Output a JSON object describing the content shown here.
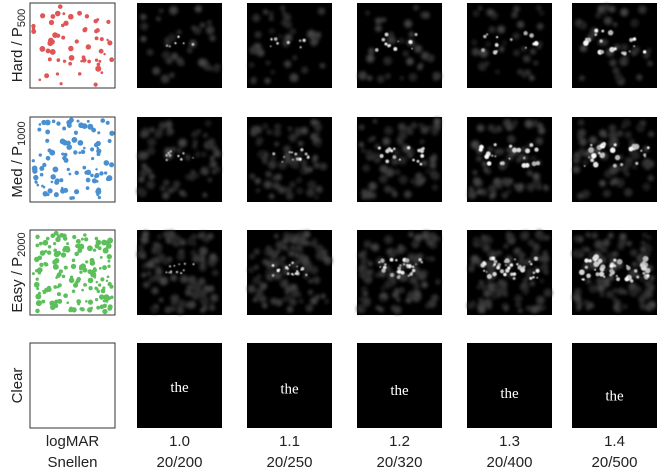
{
  "rows": [
    {
      "label": "Hard / P",
      "sub": "500"
    },
    {
      "label": "Med / P",
      "sub": "1000"
    },
    {
      "label": "Easy / P",
      "sub": "2000"
    },
    {
      "label": "Clear"
    }
  ],
  "clear_word": "the",
  "footer": {
    "logmar_label": "logMAR",
    "snellen_label": "Snellen"
  },
  "columns": [
    {
      "logmar": "1.0",
      "snellen": "20/200"
    },
    {
      "logmar": "1.1",
      "snellen": "20/250"
    },
    {
      "logmar": "1.2",
      "snellen": "20/320"
    },
    {
      "logmar": "1.3",
      "snellen": "20/400"
    },
    {
      "logmar": "1.4",
      "snellen": "20/500"
    }
  ]
}
